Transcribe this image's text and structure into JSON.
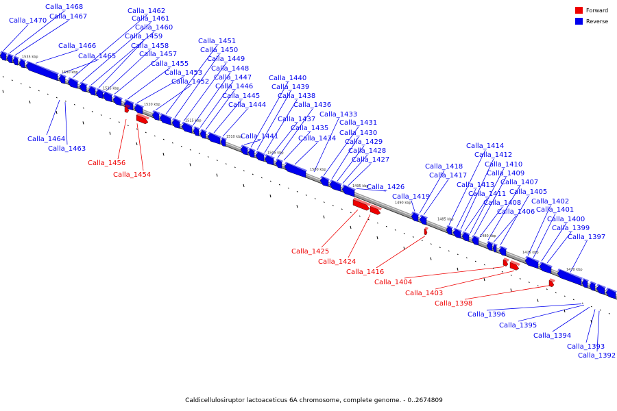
{
  "caption": "Caldicellulosiruptor lactoaceticus 6A chromosome, complete genome. - 0..2674809",
  "legend": [
    {
      "label": "Forward",
      "color": "#ee0000"
    },
    {
      "label": "Reverse",
      "color": "#0000ee"
    }
  ],
  "colors": {
    "forward": "#ee0000",
    "reverse": "#0000ee",
    "backbone": "#888888"
  },
  "kbp_marks": [
    "1535 kbp",
    "1530 kbp",
    "1525 kbp",
    "1520 kbp",
    "1515 kbp",
    "1510 kbp",
    "1505 kbp",
    "1500 kbp",
    "1495 kbp",
    "1490 kbp",
    "1485 kbp",
    "1480 kbp",
    "1475 kbp",
    "1470 kbp"
  ],
  "reverse_labels": [
    "Calla_1470",
    "Calla_1468",
    "Calla_1467",
    "Calla_1466",
    "Calla_1465",
    "Calla_1462",
    "Calla_1461",
    "Calla_1460",
    "Calla_1459",
    "Calla_1458",
    "Calla_1457",
    "Calla_1455",
    "Calla_1453",
    "Calla_1452",
    "Calla_1451",
    "Calla_1450",
    "Calla_1449",
    "Calla_1448",
    "Calla_1447",
    "Calla_1446",
    "Calla_1445",
    "Calla_1444",
    "Calla_1441",
    "Calla_1440",
    "Calla_1439",
    "Calla_1438",
    "Calla_1437",
    "Calla_1436",
    "Calla_1435",
    "Calla_1434",
    "Calla_1433",
    "Calla_1431",
    "Calla_1430",
    "Calla_1429",
    "Calla_1428",
    "Calla_1427",
    "Calla_1426",
    "Calla_1419",
    "Calla_1418",
    "Calla_1417",
    "Calla_1414",
    "Calla_1413",
    "Calla_1412",
    "Calla_1411",
    "Calla_1410",
    "Calla_1409",
    "Calla_1408",
    "Calla_1407",
    "Calla_1406",
    "Calla_1405",
    "Calla_1402",
    "Calla_1401",
    "Calla_1400",
    "Calla_1399",
    "Calla_1397"
  ],
  "lower_blue_labels": [
    "Calla_1464",
    "Calla_1463",
    "Calla_1396",
    "Calla_1395",
    "Calla_1394",
    "Calla_1393",
    "Calla_1392"
  ],
  "forward_labels": [
    "Calla_1456",
    "Calla_1454",
    "Calla_1425",
    "Calla_1424",
    "Calla_1416",
    "Calla_1404",
    "Calla_1403",
    "Calla_1398"
  ]
}
